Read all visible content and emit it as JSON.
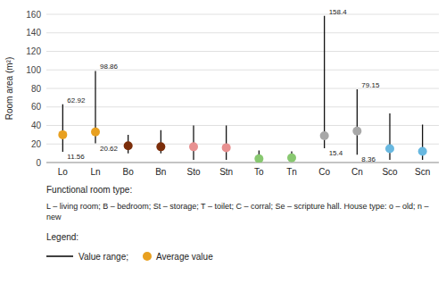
{
  "chart_data": {
    "type": "range",
    "categories": [
      "Lo",
      "Ln",
      "Bo",
      "Bn",
      "Sto",
      "Stn",
      "To",
      "Tn",
      "Co",
      "Cn",
      "Sco",
      "Scn"
    ],
    "ylabel": "Room area (m²)",
    "ylim": [
      0,
      160
    ],
    "yticks": [
      0,
      20,
      40,
      60,
      80,
      100,
      120,
      140,
      160
    ],
    "grid": true,
    "legend": "bottom",
    "legend_title": "Legend:",
    "footnotes": [
      "Functional room type:",
      "L – living room; B – bedroom; St – storage; T – toilet; C – corral; Se – scripture hall. House type: o – old; n – new"
    ],
    "series": [
      {
        "name": "Value range;",
        "type": "range",
        "color": "#000000",
        "low": [
          11.56,
          20.62,
          10,
          10,
          3,
          3,
          1,
          1,
          15.4,
          8.36,
          3,
          3
        ],
        "high": [
          62.92,
          98.86,
          30,
          35,
          40,
          40,
          13,
          12,
          158.4,
          79.15,
          53,
          41
        ],
        "low_labels": [
          "11.56",
          "20.62",
          null,
          null,
          null,
          null,
          null,
          null,
          "15.4",
          "8.36",
          null,
          null
        ],
        "high_labels": [
          "62.92",
          "98.86",
          null,
          null,
          null,
          null,
          null,
          null,
          "158.4",
          "79.15",
          null,
          null
        ]
      },
      {
        "name": "Average value",
        "type": "scatter",
        "color": "#E8A020",
        "colors": [
          "#E8A020",
          "#E8A020",
          "#7B2D0A",
          "#7B2D0A",
          "#E89090",
          "#E89090",
          "#88C870",
          "#88C870",
          "#A8A8A8",
          "#A8A8A8",
          "#68B8E0",
          "#68B8E0"
        ],
        "values": [
          30,
          33,
          18,
          17,
          17,
          16,
          4,
          5,
          29,
          34,
          15,
          12
        ]
      }
    ]
  }
}
